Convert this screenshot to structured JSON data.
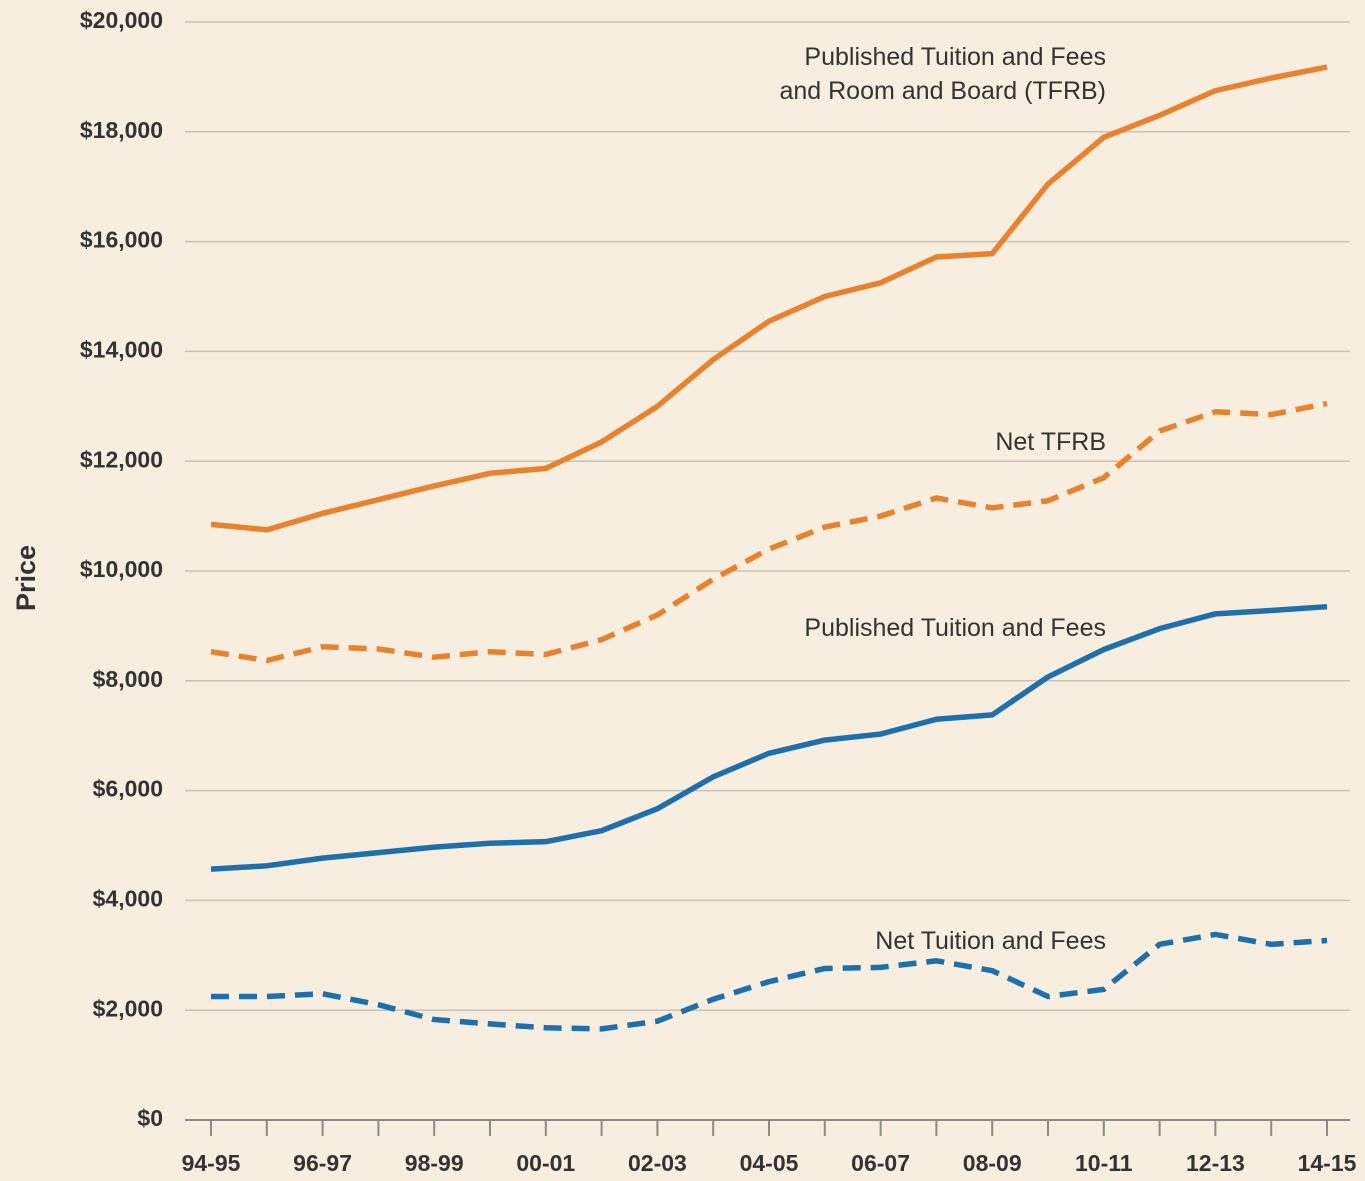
{
  "chart_data": {
    "type": "line",
    "y_label": "Price",
    "categories": [
      "94-95",
      null,
      "96-97",
      null,
      "98-99",
      null,
      "00-01",
      null,
      "02-03",
      null,
      "04-05",
      null,
      "06-07",
      null,
      "08-09",
      null,
      "10-11",
      null,
      "12-13",
      null,
      "14-15"
    ],
    "series": [
      {
        "name": "Published Tuition and Fees\nand Room and Board (TFRB)",
        "color": "#e8822e",
        "dashed": false,
        "values": [
          10850,
          10750,
          11050,
          11300,
          11550,
          11780,
          11870,
          12350,
          13000,
          13850,
          14550,
          15000,
          15250,
          15720,
          15780,
          17050,
          17900,
          18300,
          18750,
          18980,
          19180
        ]
      },
      {
        "name": "Net TFRB",
        "color": "#e8822e",
        "dashed": true,
        "values": [
          8530,
          8370,
          8620,
          8580,
          8430,
          8530,
          8480,
          8750,
          9200,
          9850,
          10400,
          10800,
          11000,
          11330,
          11150,
          11280,
          11700,
          12550,
          12900,
          12850,
          13050
        ]
      },
      {
        "name": "Published Tuition and Fees",
        "color": "#1f6fad",
        "dashed": false,
        "values": [
          4570,
          4630,
          4770,
          4870,
          4970,
          5040,
          5070,
          5270,
          5670,
          6250,
          6680,
          6920,
          7030,
          7300,
          7380,
          8070,
          8570,
          8950,
          9220,
          9280,
          9350
        ]
      },
      {
        "name": "Net Tuition and Fees",
        "color": "#1f6fad",
        "dashed": true,
        "values": [
          2250,
          2250,
          2300,
          2100,
          1830,
          1750,
          1680,
          1660,
          1800,
          2200,
          2520,
          2760,
          2780,
          2900,
          2720,
          2250,
          2380,
          3200,
          3380,
          3200,
          3270
        ]
      }
    ],
    "ylim": [
      0,
      20000
    ],
    "yticks": [
      {
        "value": 0,
        "label": "$0"
      },
      {
        "value": 2000,
        "label": "$2,000"
      },
      {
        "value": 4000,
        "label": "$4,000"
      },
      {
        "value": 6000,
        "label": "$6,000"
      },
      {
        "value": 8000,
        "label": "$8,000"
      },
      {
        "value": 10000,
        "label": "$10,000"
      },
      {
        "value": 12000,
        "label": "$12,000"
      },
      {
        "value": 14000,
        "label": "$14,000"
      },
      {
        "value": 16000,
        "label": "$16,000"
      },
      {
        "value": 18000,
        "label": "$18,000"
      },
      {
        "value": 20000,
        "label": "$20,000"
      }
    ],
    "grid": true
  }
}
